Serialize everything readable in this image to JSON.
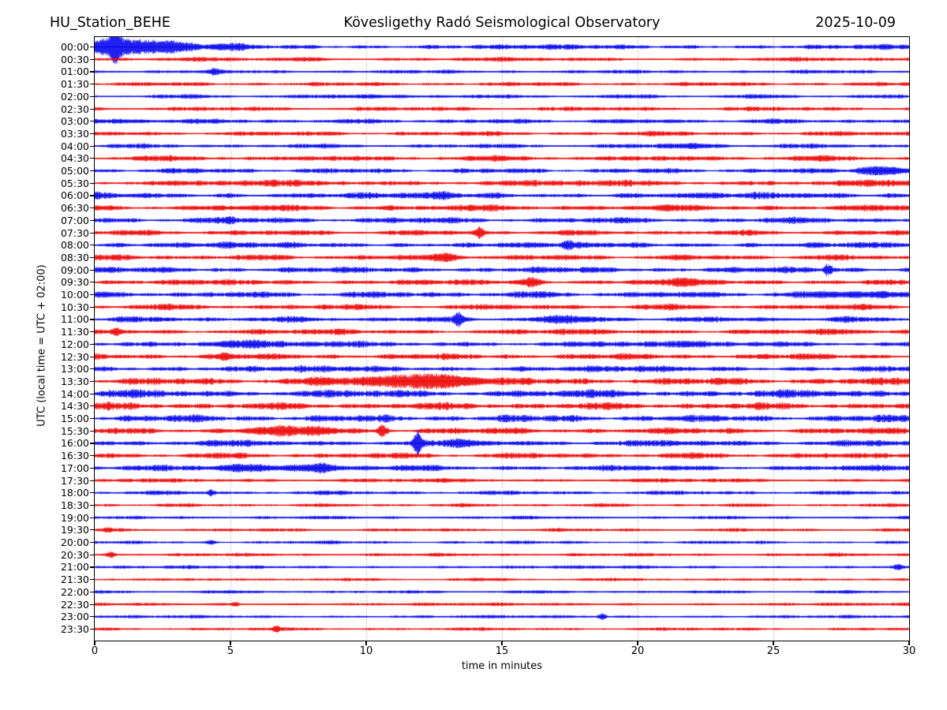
{
  "header": {
    "station": "HU_Station_BEHE",
    "title": "Kövesligethy Radó Seismological Observatory",
    "date": "2025-10-09"
  },
  "axes": {
    "xlabel": "time in minutes",
    "ylabel": "UTC (local time = UTC + 02:00)",
    "x_ticks": [
      0,
      5,
      10,
      15,
      20,
      25,
      30
    ],
    "x_range": [
      0,
      30
    ],
    "grid_minutes": [
      5,
      10,
      15,
      20,
      25
    ],
    "grid_style": "dotted"
  },
  "colors": {
    "blue": "#0000ee",
    "red": "#ee0000",
    "grid": "#888888",
    "axis": "#000000",
    "background": "#ffffff"
  },
  "chart_data": {
    "type": "line",
    "subtype": "helicorder-dayplot",
    "minutes_per_line": 30,
    "lines_count": 48,
    "title": "HU_Station_BEHE — Kövesligethy Radó Seismological Observatory — 2025-10-09",
    "xlabel": "time in minutes",
    "ylabel": "UTC (local time = UTC + 02:00)",
    "note": "48 half-hour traces, alternating blue/red; base_amp is typical half-amplitude in px; events are bursts/spikes at minute m, width w (min), extra amplitude a (px)",
    "rows": [
      {
        "label": "00:00",
        "color": "blue",
        "base_amp": 1.5,
        "events": [
          {
            "m": 0.75,
            "w": 0.12,
            "a": 9
          },
          {
            "m": 0.5,
            "w": 0.5,
            "a": 4.5
          },
          {
            "m": 1.5,
            "w": 0.9,
            "a": 4.5
          },
          {
            "m": 2.8,
            "w": 1.0,
            "a": 2.2
          },
          {
            "m": 5.2,
            "w": 0.4,
            "a": 1.5
          }
        ]
      },
      {
        "label": "00:30",
        "color": "red",
        "base_amp": 1.2,
        "events": [
          {
            "m": 8.0,
            "w": 0.6,
            "a": 0.8
          }
        ]
      },
      {
        "label": "01:00",
        "color": "blue",
        "base_amp": 1.1,
        "events": [
          {
            "m": 4.4,
            "w": 0.12,
            "a": 2.2
          }
        ]
      },
      {
        "label": "01:30",
        "color": "red",
        "base_amp": 1.2,
        "events": []
      },
      {
        "label": "02:00",
        "color": "blue",
        "base_amp": 1.2,
        "events": [
          {
            "m": 10.2,
            "w": 0.8,
            "a": 0.8
          }
        ]
      },
      {
        "label": "02:30",
        "color": "red",
        "base_amp": 1.3,
        "events": []
      },
      {
        "label": "03:00",
        "color": "blue",
        "base_amp": 1.4,
        "events": [
          {
            "m": 1.5,
            "w": 0.8,
            "a": 0.9
          }
        ]
      },
      {
        "label": "03:30",
        "color": "red",
        "base_amp": 1.4,
        "events": []
      },
      {
        "label": "04:00",
        "color": "blue",
        "base_amp": 1.3,
        "events": [
          {
            "m": 22.0,
            "w": 1.0,
            "a": 1.2
          }
        ]
      },
      {
        "label": "04:30",
        "color": "red",
        "base_amp": 1.6,
        "events": []
      },
      {
        "label": "05:00",
        "color": "blue",
        "base_amp": 1.5,
        "events": [
          {
            "m": 28.6,
            "w": 0.4,
            "a": 3.5
          },
          {
            "m": 29.5,
            "w": 0.4,
            "a": 2.2
          }
        ]
      },
      {
        "label": "05:30",
        "color": "red",
        "base_amp": 1.9,
        "events": []
      },
      {
        "label": "06:00",
        "color": "blue",
        "base_amp": 1.9,
        "events": [
          {
            "m": 12.8,
            "w": 0.3,
            "a": 1.4
          }
        ]
      },
      {
        "label": "06:30",
        "color": "red",
        "base_amp": 1.9,
        "events": []
      },
      {
        "label": "07:00",
        "color": "blue",
        "base_amp": 1.8,
        "events": [
          {
            "m": 5.0,
            "w": 0.15,
            "a": 2.2
          }
        ]
      },
      {
        "label": "07:30",
        "color": "red",
        "base_amp": 1.6,
        "events": [
          {
            "m": 14.2,
            "w": 0.1,
            "a": 4.5
          }
        ]
      },
      {
        "label": "08:00",
        "color": "blue",
        "base_amp": 1.8,
        "events": [
          {
            "m": 17.4,
            "w": 0.12,
            "a": 2.6
          }
        ]
      },
      {
        "label": "08:30",
        "color": "red",
        "base_amp": 1.7,
        "events": [
          {
            "m": 13.0,
            "w": 0.4,
            "a": 2.8
          }
        ]
      },
      {
        "label": "09:00",
        "color": "blue",
        "base_amp": 1.8,
        "events": [
          {
            "m": 27.0,
            "w": 0.1,
            "a": 4.5
          }
        ]
      },
      {
        "label": "09:30",
        "color": "red",
        "base_amp": 1.7,
        "events": [
          {
            "m": 16.1,
            "w": 0.22,
            "a": 3.8
          },
          {
            "m": 21.6,
            "w": 0.35,
            "a": 3.2
          }
        ]
      },
      {
        "label": "10:00",
        "color": "blue",
        "base_amp": 1.9,
        "events": [
          {
            "m": 28.5,
            "w": 1.1,
            "a": 1.8
          }
        ]
      },
      {
        "label": "10:30",
        "color": "red",
        "base_amp": 1.7,
        "events": []
      },
      {
        "label": "11:00",
        "color": "blue",
        "base_amp": 1.7,
        "events": [
          {
            "m": 13.4,
            "w": 0.1,
            "a": 5.5
          },
          {
            "m": 17.3,
            "w": 0.45,
            "a": 2.8
          }
        ]
      },
      {
        "label": "11:30",
        "color": "red",
        "base_amp": 1.7,
        "events": [
          {
            "m": 0.8,
            "w": 0.12,
            "a": 2.8
          }
        ]
      },
      {
        "label": "12:00",
        "color": "blue",
        "base_amp": 1.9,
        "events": [
          {
            "m": 5.3,
            "w": 0.7,
            "a": 1.4
          }
        ]
      },
      {
        "label": "12:30",
        "color": "red",
        "base_amp": 1.8,
        "events": [
          {
            "m": 4.8,
            "w": 0.15,
            "a": 2.6
          }
        ]
      },
      {
        "label": "13:00",
        "color": "blue",
        "base_amp": 1.9,
        "events": []
      },
      {
        "label": "13:30",
        "color": "red",
        "base_amp": 2.1,
        "events": [
          {
            "m": 8.3,
            "w": 0.4,
            "a": 2.6
          },
          {
            "m": 11.8,
            "w": 1.1,
            "a": 5.5
          },
          {
            "m": 13.4,
            "w": 0.7,
            "a": 2.8
          }
        ]
      },
      {
        "label": "14:00",
        "color": "blue",
        "base_amp": 2.3,
        "events": []
      },
      {
        "label": "14:30",
        "color": "red",
        "base_amp": 2.1,
        "events": []
      },
      {
        "label": "15:00",
        "color": "blue",
        "base_amp": 2.1,
        "events": []
      },
      {
        "label": "15:30",
        "color": "red",
        "base_amp": 1.9,
        "events": [
          {
            "m": 6.5,
            "w": 0.7,
            "a": 2.6
          },
          {
            "m": 8.3,
            "w": 0.5,
            "a": 2.6
          },
          {
            "m": 10.6,
            "w": 0.12,
            "a": 5.5
          }
        ]
      },
      {
        "label": "16:00",
        "color": "blue",
        "base_amp": 1.9,
        "events": [
          {
            "m": 11.9,
            "w": 0.1,
            "a": 10.5
          },
          {
            "m": 13.6,
            "w": 0.4,
            "a": 1.8
          }
        ]
      },
      {
        "label": "16:30",
        "color": "red",
        "base_amp": 1.7,
        "events": []
      },
      {
        "label": "17:00",
        "color": "blue",
        "base_amp": 1.7,
        "events": [
          {
            "m": 5.5,
            "w": 0.7,
            "a": 2.4
          },
          {
            "m": 7.5,
            "w": 0.7,
            "a": 2.4
          },
          {
            "m": 8.3,
            "w": 0.25,
            "a": 2.8
          }
        ]
      },
      {
        "label": "17:30",
        "color": "red",
        "base_amp": 1.2,
        "events": []
      },
      {
        "label": "18:00",
        "color": "blue",
        "base_amp": 1.2,
        "events": [
          {
            "m": 4.3,
            "w": 0.1,
            "a": 2.8
          }
        ]
      },
      {
        "label": "18:30",
        "color": "red",
        "base_amp": 1.0,
        "events": []
      },
      {
        "label": "19:00",
        "color": "blue",
        "base_amp": 0.95,
        "events": []
      },
      {
        "label": "19:30",
        "color": "red",
        "base_amp": 1.0,
        "events": [
          {
            "m": 0.5,
            "w": 0.1,
            "a": 1.6
          }
        ]
      },
      {
        "label": "20:00",
        "color": "blue",
        "base_amp": 0.95,
        "events": [
          {
            "m": 4.3,
            "w": 0.1,
            "a": 1.8
          }
        ]
      },
      {
        "label": "20:30",
        "color": "red",
        "base_amp": 1.0,
        "events": [
          {
            "m": 0.6,
            "w": 0.1,
            "a": 2.2
          }
        ]
      },
      {
        "label": "21:00",
        "color": "blue",
        "base_amp": 0.95,
        "events": [
          {
            "m": 29.6,
            "w": 0.1,
            "a": 2.2
          }
        ]
      },
      {
        "label": "21:30",
        "color": "red",
        "base_amp": 0.9,
        "events": []
      },
      {
        "label": "22:00",
        "color": "blue",
        "base_amp": 0.9,
        "events": []
      },
      {
        "label": "22:30",
        "color": "red",
        "base_amp": 0.95,
        "events": [
          {
            "m": 5.2,
            "w": 0.1,
            "a": 1.8
          }
        ]
      },
      {
        "label": "23:00",
        "color": "blue",
        "base_amp": 0.95,
        "events": [
          {
            "m": 18.7,
            "w": 0.1,
            "a": 2.6
          }
        ]
      },
      {
        "label": "23:30",
        "color": "red",
        "base_amp": 0.9,
        "events": [
          {
            "m": 6.7,
            "w": 0.1,
            "a": 2.4
          }
        ]
      }
    ]
  }
}
